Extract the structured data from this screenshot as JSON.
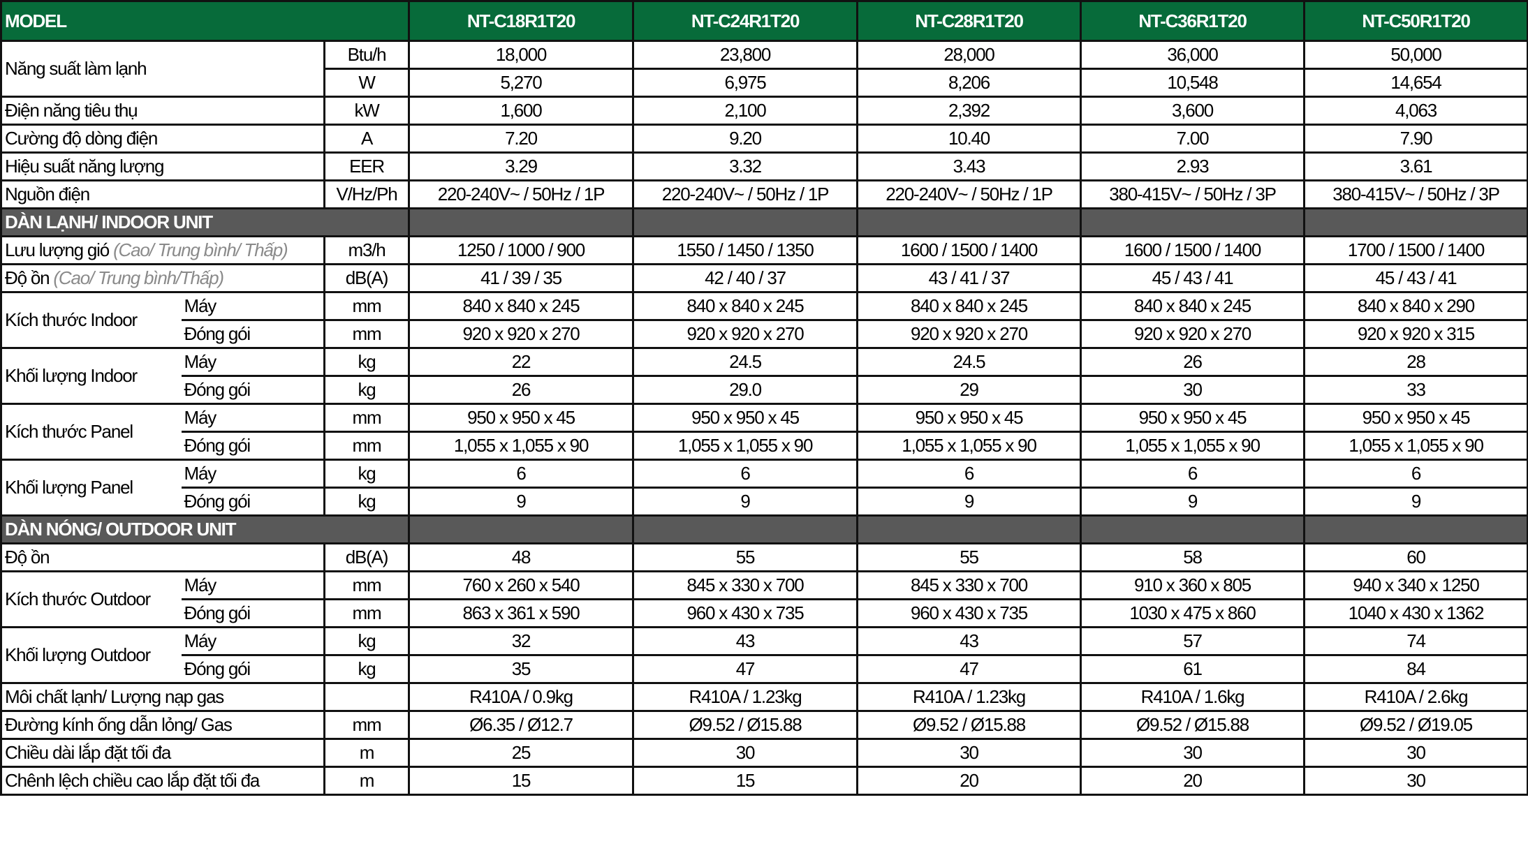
{
  "header": {
    "model_label": "MODEL",
    "models": [
      "NT-C18R1T20",
      "NT-C24R1T20",
      "NT-C28R1T20",
      "NT-C36R1T20",
      "NT-C50R1T20"
    ]
  },
  "colors": {
    "header_bg": "#076b3a",
    "section_bg": "#595959",
    "note_text": "#8a8a8a"
  },
  "rows": [
    {
      "group": "Năng suất làm lạnh",
      "unit": "Btu/h",
      "values": [
        "18,000",
        "23,800",
        "28,000",
        "36,000",
        "50,000"
      ]
    },
    {
      "group": "Năng suất làm lạnh",
      "unit": "W",
      "values": [
        "5,270",
        "6,975",
        "8,206",
        "10,548",
        "14,654"
      ]
    },
    {
      "label": "Điện năng tiêu thụ",
      "unit": "kW",
      "values": [
        "1,600",
        "2,100",
        "2,392",
        "3,600",
        "4,063"
      ]
    },
    {
      "label": "Cường độ dòng điện",
      "unit": "A",
      "values": [
        "7.20",
        "9.20",
        "10.40",
        "7.00",
        "7.90"
      ]
    },
    {
      "label": "Hiệu suất năng lượng",
      "unit": "EER",
      "values": [
        "3.29",
        "3.32",
        "3.43",
        "2.93",
        "3.61"
      ]
    },
    {
      "label": "Nguồn điện",
      "unit": "V/Hz/Ph",
      "values": [
        "220-240V~ / 50Hz / 1P",
        "220-240V~ / 50Hz / 1P",
        "220-240V~ / 50Hz / 1P",
        "380-415V~ / 50Hz / 3P",
        "380-415V~ / 50Hz / 3P"
      ]
    },
    {
      "section": "DÀN LẠNH/ INDOOR UNIT"
    },
    {
      "label": "Lưu lượng gió",
      "note": "(Cao/ Trung bình/ Thấp)",
      "unit": "m3/h",
      "values": [
        "1250 / 1000 / 900",
        "1550 / 1450 / 1350",
        "1600 / 1500 / 1400",
        "1600 / 1500 / 1400",
        "1700 / 1500 / 1400"
      ]
    },
    {
      "label": "Độ ồn",
      "note": "(Cao/ Trung bình/Thấp)",
      "unit": "dB(A)",
      "values": [
        "41 / 39 / 35",
        "42 / 40 / 37",
        "43 / 41 / 37",
        "45 / 43 / 41",
        "45 / 43 / 41"
      ]
    },
    {
      "group": "Kích thước Indoor",
      "sub": "Máy",
      "unit": "mm",
      "values": [
        "840 x 840 x 245",
        "840 x 840 x 245",
        "840 x 840 x 245",
        "840 x 840 x 245",
        "840 x 840 x 290"
      ]
    },
    {
      "group": "Kích thước Indoor",
      "sub": "Đóng gói",
      "unit": "mm",
      "values": [
        "920 x 920 x 270",
        "920 x 920 x 270",
        "920 x 920 x 270",
        "920 x 920 x 270",
        "920 x 920 x 315"
      ]
    },
    {
      "group": "Khối lượng Indoor",
      "sub": "Máy",
      "unit": "kg",
      "values": [
        "22",
        "24.5",
        "24.5",
        "26",
        "28"
      ]
    },
    {
      "group": "Khối lượng Indoor",
      "sub": "Đóng gói",
      "unit": "kg",
      "values": [
        "26",
        "29.0",
        "29",
        "30",
        "33"
      ]
    },
    {
      "group": "Kích thước Panel",
      "sub": "Máy",
      "unit": "mm",
      "values": [
        "950 x 950 x 45",
        "950 x 950 x 45",
        "950 x 950 x 45",
        "950 x 950 x 45",
        "950 x 950 x 45"
      ]
    },
    {
      "group": "Kích thước Panel",
      "sub": "Đóng gói",
      "unit": "mm",
      "values": [
        "1,055 x 1,055 x 90",
        "1,055 x 1,055 x 90",
        "1,055 x 1,055 x 90",
        "1,055 x 1,055 x 90",
        "1,055 x 1,055 x 90"
      ]
    },
    {
      "group": "Khối lượng Panel",
      "sub": "Máy",
      "unit": "kg",
      "values": [
        "6",
        "6",
        "6",
        "6",
        "6"
      ]
    },
    {
      "group": "Khối lượng Panel",
      "sub": "Đóng gói",
      "unit": "kg",
      "values": [
        "9",
        "9",
        "9",
        "9",
        "9"
      ]
    },
    {
      "section": "DÀN NÓNG/ OUTDOOR UNIT"
    },
    {
      "label": "Độ ồn",
      "unit": "dB(A)",
      "values": [
        "48",
        "55",
        "55",
        "58",
        "60"
      ]
    },
    {
      "group": "Kích thước Outdoor",
      "sub": "Máy",
      "unit": "mm",
      "values": [
        "760 x 260 x 540",
        "845 x 330 x 700",
        "845 x 330 x 700",
        "910 x 360 x 805",
        "940 x 340 x 1250"
      ]
    },
    {
      "group": "Kích thước Outdoor",
      "sub": "Đóng gói",
      "unit": "mm",
      "values": [
        "863 x 361 x 590",
        "960 x 430 x 735",
        "960 x 430 x 735",
        "1030 x 475 x 860",
        "1040 x 430 x 1362"
      ]
    },
    {
      "group": "Khối lượng Outdoor",
      "sub": "Máy",
      "unit": "kg",
      "values": [
        "32",
        "43",
        "43",
        "57",
        "74"
      ]
    },
    {
      "group": "Khối lượng Outdoor",
      "sub": "Đóng gói",
      "unit": "kg",
      "values": [
        "35",
        "47",
        "47",
        "61",
        "84"
      ]
    },
    {
      "label": "Môi chất lạnh/ Lượng nạp gas",
      "unit": "",
      "values": [
        "R410A / 0.9kg",
        "R410A / 1.23kg",
        "R410A / 1.23kg",
        "R410A / 1.6kg",
        "R410A / 2.6kg"
      ]
    },
    {
      "label": "Đường kính ống dẫn lỏng/ Gas",
      "unit": "mm",
      "values": [
        "Ø6.35 / Ø12.7",
        "Ø9.52 / Ø15.88",
        "Ø9.52 / Ø15.88",
        "Ø9.52 / Ø15.88",
        "Ø9.52 / Ø19.05"
      ]
    },
    {
      "label": "Chiều dài lắp đặt tối đa",
      "unit": "m",
      "values": [
        "25",
        "30",
        "30",
        "30",
        "30"
      ]
    },
    {
      "label": "Chênh lệch chiều cao lắp đặt tối đa",
      "unit": "m",
      "values": [
        "15",
        "15",
        "20",
        "20",
        "30"
      ]
    }
  ]
}
